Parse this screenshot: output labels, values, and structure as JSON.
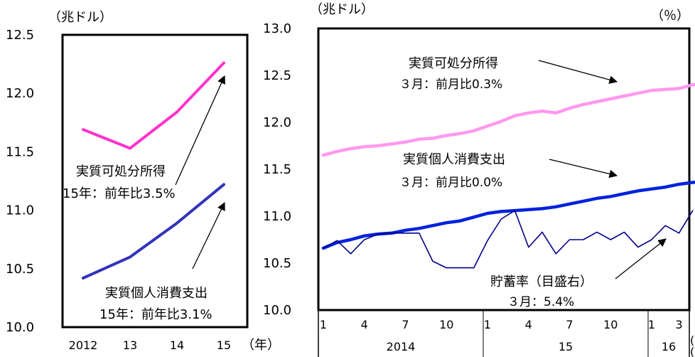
{
  "chart_data": [
    {
      "type": "line",
      "ylabel": "（兆ドル）",
      "xlabel": "（年）",
      "categories": [
        "2012",
        "13",
        "14",
        "15"
      ],
      "ylim": [
        10.0,
        12.5
      ],
      "y_ticks": [
        "12.5",
        "12.0",
        "11.5",
        "11.0",
        "10.5",
        "10.0"
      ],
      "series": [
        {
          "name": "実質可処分所得",
          "values": [
            11.69,
            11.53,
            11.84,
            12.26
          ],
          "color": "#ff33cc"
        },
        {
          "name": "実質個人消費支出",
          "values": [
            10.42,
            10.6,
            10.89,
            11.22
          ],
          "color": "#3333bb"
        }
      ],
      "annotations": [
        {
          "line1": "実質可処分所得",
          "line2": "15年：前年比3.5%"
        },
        {
          "line1": "実質個人消費支出",
          "line2": "15年：前年比3.1%"
        }
      ]
    },
    {
      "type": "line",
      "ylabel_left": "（兆ドル）",
      "ylabel_right": "（％）",
      "ylim": [
        10.0,
        13.0
      ],
      "y_ticks": [
        "13.0",
        "12.5",
        "12.0",
        "11.5",
        "11.0",
        "10.5",
        "10.0"
      ],
      "month_ticks": [
        "1",
        "4",
        "7",
        "10",
        "1",
        "4",
        "7",
        "10",
        "1",
        "3"
      ],
      "year_labels": [
        "2014",
        "15",
        "16"
      ],
      "x_start": "2014-01",
      "x_end": "2016-03",
      "series": [
        {
          "name": "実質可処分所得",
          "color": "#ff99ee",
          "values": [
            11.65,
            11.69,
            11.72,
            11.74,
            11.75,
            11.77,
            11.79,
            11.82,
            11.83,
            11.86,
            11.88,
            11.91,
            11.96,
            12.01,
            12.07,
            12.1,
            12.12,
            12.1,
            12.15,
            12.19,
            12.22,
            12.25,
            12.28,
            12.31,
            12.34,
            12.35,
            12.36,
            12.4,
            12.42,
            12.45,
            12.48
          ]
        },
        {
          "name": "実質個人消費支出",
          "color": "#0022dd",
          "values": [
            10.66,
            10.72,
            10.75,
            10.79,
            10.81,
            10.82,
            10.85,
            10.87,
            10.9,
            10.93,
            10.95,
            10.99,
            11.03,
            11.05,
            11.06,
            11.07,
            11.08,
            11.1,
            11.13,
            11.16,
            11.19,
            11.21,
            11.24,
            11.27,
            11.29,
            11.31,
            11.34,
            11.36,
            11.37,
            11.39,
            11.4
          ]
        },
        {
          "name": "貯蓄率（目盛右）",
          "color": "#000088",
          "values": [
            10.66,
            10.74,
            10.6,
            10.75,
            10.81,
            10.82,
            10.82,
            10.82,
            10.52,
            10.45,
            10.45,
            10.45,
            10.74,
            10.97,
            11.06,
            10.67,
            10.83,
            10.6,
            10.75,
            10.75,
            10.83,
            10.75,
            10.83,
            10.67,
            10.75,
            10.9,
            10.82,
            11.06
          ]
        }
      ],
      "annotations": [
        {
          "line1": "実質可処分所得",
          "line2": "３月：前月比0.3%"
        },
        {
          "line1": "実質個人消費支出",
          "line2": "３月：前月比0.0%"
        },
        {
          "line1": "貯蓄率（目盛右）",
          "line2": "３月：5.4%"
        }
      ],
      "right_axis_fragments": [
        "(",
        "("
      ]
    }
  ]
}
